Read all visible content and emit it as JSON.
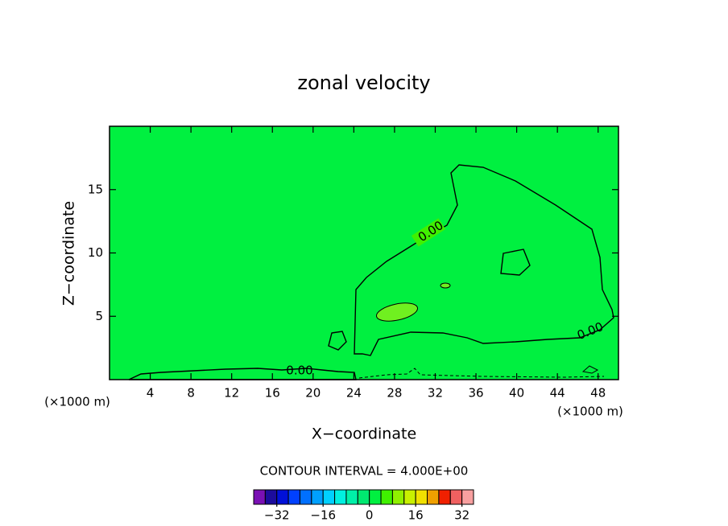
{
  "chart_data": {
    "type": "contour",
    "title": "zonal velocity",
    "xlabel": "X−coordinate",
    "ylabel": "Z−coordinate",
    "x_unit_left": "(×1000 m)",
    "x_unit_right": "(×1000 m)",
    "xlim": [
      0,
      50
    ],
    "xticks": [
      4,
      8,
      12,
      16,
      20,
      24,
      28,
      32,
      36,
      40,
      44,
      48
    ],
    "ylim": [
      0,
      20
    ],
    "yticks": [
      5,
      10,
      15
    ],
    "background_color": "#00f040",
    "region_colors": [
      "#40f000",
      "#70f020"
    ],
    "contour_levels": [
      {
        "value": 0,
        "label": "0.00"
      }
    ],
    "contour_interval_text": "CONTOUR INTERVAL = 4.000E+00",
    "colorbar": {
      "lim": [
        -40,
        36
      ],
      "colors": [
        "#7a10b4",
        "#1c0c9c",
        "#0010d8",
        "#0040ff",
        "#0070ff",
        "#00a0ff",
        "#00d0ff",
        "#00f0e0",
        "#00f0a8",
        "#00e870",
        "#00f040",
        "#40f000",
        "#90f000",
        "#c8f000",
        "#f0e000",
        "#f0a000",
        "#f02000",
        "#f06060",
        "#f8a0a0"
      ],
      "ticks": [
        {
          "value": -32,
          "label": "−32"
        },
        {
          "value": -16,
          "label": "−16"
        },
        0,
        16,
        32
      ]
    }
  }
}
